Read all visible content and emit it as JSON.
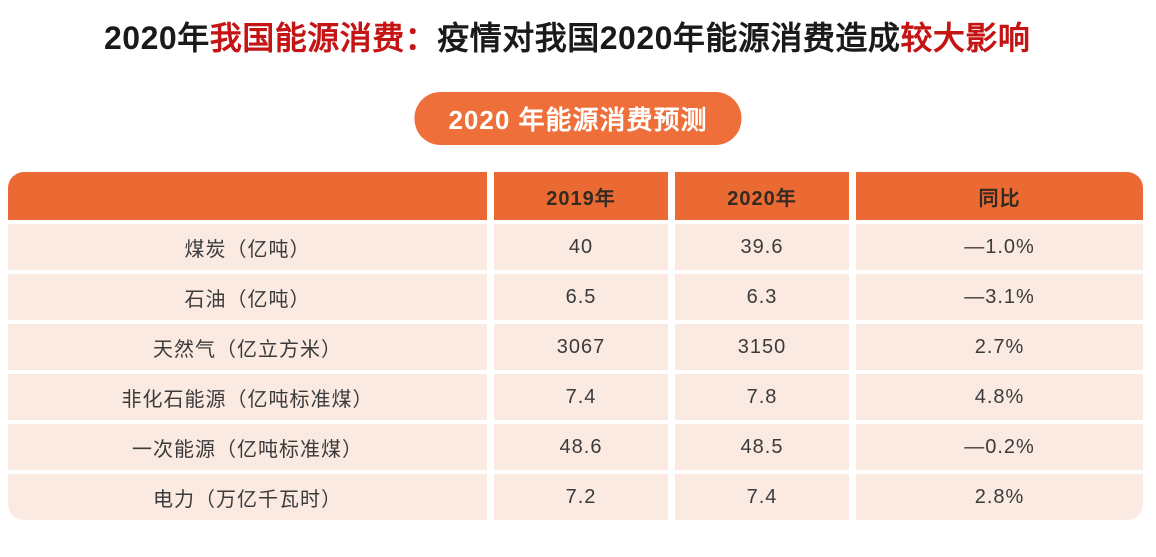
{
  "title": {
    "part1_black": "2020年",
    "part2_red": "我国能源消费：",
    "part3_black": "疫情对我国2020年能源消费造成",
    "part4_red": "较大影响"
  },
  "badge": {
    "label": "2020 年能源消费预测"
  },
  "table": {
    "headers": {
      "col1": "",
      "col2": "2019年",
      "col3": "2020年",
      "col4": "同比"
    },
    "rows": [
      {
        "label": "煤炭（亿吨）",
        "y2019": "40",
        "y2020": "39.6",
        "yoy": "—1.0%"
      },
      {
        "label": "石油（亿吨）",
        "y2019": "6.5",
        "y2020": "6.3",
        "yoy": "—3.1%"
      },
      {
        "label": "天然气（亿立方米）",
        "y2019": "3067",
        "y2020": "3150",
        "yoy": "2.7%"
      },
      {
        "label": "非化石能源（亿吨标准煤）",
        "y2019": "7.4",
        "y2020": "7.8",
        "yoy": "4.8%"
      },
      {
        "label": "一次能源（亿吨标准煤）",
        "y2019": "48.6",
        "y2020": "48.5",
        "yoy": "—0.2%"
      },
      {
        "label": "电力（万亿千瓦时）",
        "y2019": "7.2",
        "y2020": "7.4",
        "yoy": "2.8%"
      }
    ]
  },
  "colors": {
    "header_orange": "#eb6a33",
    "badge_orange": "#ee6f3a",
    "row_peach": "#fbeae2",
    "title_red": "#c41414",
    "text_dark": "#3b3b3b"
  },
  "chart_data": {
    "type": "table",
    "title": "2020 年能源消费预测",
    "columns": [
      "",
      "2019年",
      "2020年",
      "同比"
    ],
    "rows": [
      [
        "煤炭（亿吨）",
        40,
        39.6,
        "-1.0%"
      ],
      [
        "石油（亿吨）",
        6.5,
        6.3,
        "-3.1%"
      ],
      [
        "天然气（亿立方米）",
        3067,
        3150,
        "2.7%"
      ],
      [
        "非化石能源（亿吨标准煤）",
        7.4,
        7.8,
        "4.8%"
      ],
      [
        "一次能源（亿吨标准煤）",
        48.6,
        48.5,
        "-0.2%"
      ],
      [
        "电力（万亿千瓦时）",
        7.2,
        7.4,
        "2.8%"
      ]
    ]
  }
}
